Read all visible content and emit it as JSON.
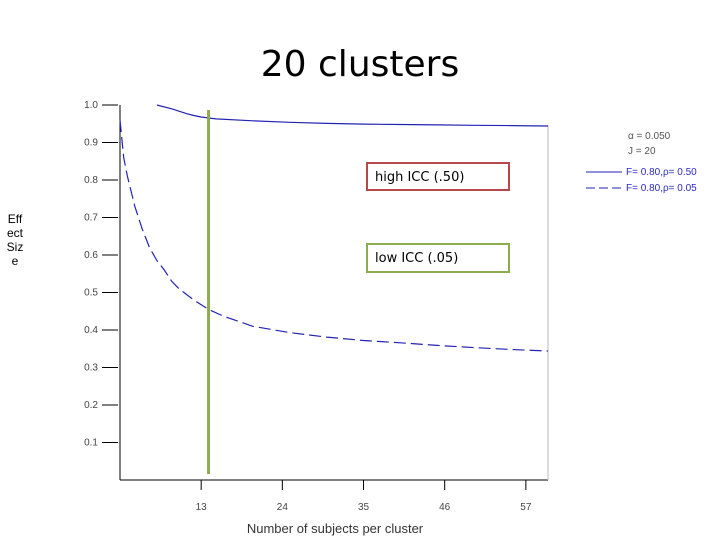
{
  "slide": {
    "title": "20 clusters"
  },
  "callouts": {
    "high": "high ICC (.50)",
    "low": "low ICC (.05)"
  },
  "legend": {
    "alpha": "α = 0.050",
    "j": "J = 20",
    "items": [
      {
        "label": "F= 0.80,ρ= 0.50",
        "dash": "solid"
      },
      {
        "label": "F= 0.80,ρ= 0.05",
        "dash": "dashed"
      }
    ]
  },
  "colors": {
    "series": "#2323b4",
    "reference_line": "#8dac4f",
    "axis": "#000000"
  },
  "chart_data": {
    "type": "line",
    "xlabel": "Number of subjects per cluster",
    "ylabel": "Effect Size",
    "xlim": [
      2,
      60
    ],
    "ylim": [
      0.0,
      1.0
    ],
    "xticks": [
      13,
      24,
      35,
      46,
      57
    ],
    "yticks": [
      0.1,
      0.2,
      0.3,
      0.4,
      0.5,
      0.6,
      0.7,
      0.8,
      0.9,
      1.0
    ],
    "ytick_labels": [
      "0.1",
      "0.2",
      "0.3",
      "0.4",
      "0.5",
      "0.6",
      "0.7",
      "0.8",
      "0.9",
      "1.0"
    ],
    "reference_x": 14,
    "series": [
      {
        "name": "F= 0.80,ρ= 0.50",
        "dash": "solid",
        "x": [
          7,
          9,
          11,
          12,
          13,
          15,
          20,
          25,
          30,
          35,
          40,
          45,
          50,
          55,
          60
        ],
        "y": [
          1.0,
          0.99,
          0.977,
          0.972,
          0.968,
          0.963,
          0.958,
          0.954,
          0.951,
          0.949,
          0.948,
          0.947,
          0.946,
          0.945,
          0.944
        ]
      },
      {
        "name": "F= 0.80,ρ= 0.05",
        "dash": "dashed",
        "x": [
          2,
          2.5,
          3,
          4,
          5,
          6,
          7,
          8,
          9,
          10,
          12,
          14,
          16,
          20,
          25,
          30,
          35,
          40,
          45,
          50,
          55,
          60
        ],
        "y": [
          0.96,
          0.86,
          0.81,
          0.73,
          0.67,
          0.62,
          0.585,
          0.56,
          0.53,
          0.51,
          0.48,
          0.455,
          0.437,
          0.41,
          0.393,
          0.381,
          0.372,
          0.366,
          0.359,
          0.353,
          0.348,
          0.344
        ]
      }
    ]
  }
}
